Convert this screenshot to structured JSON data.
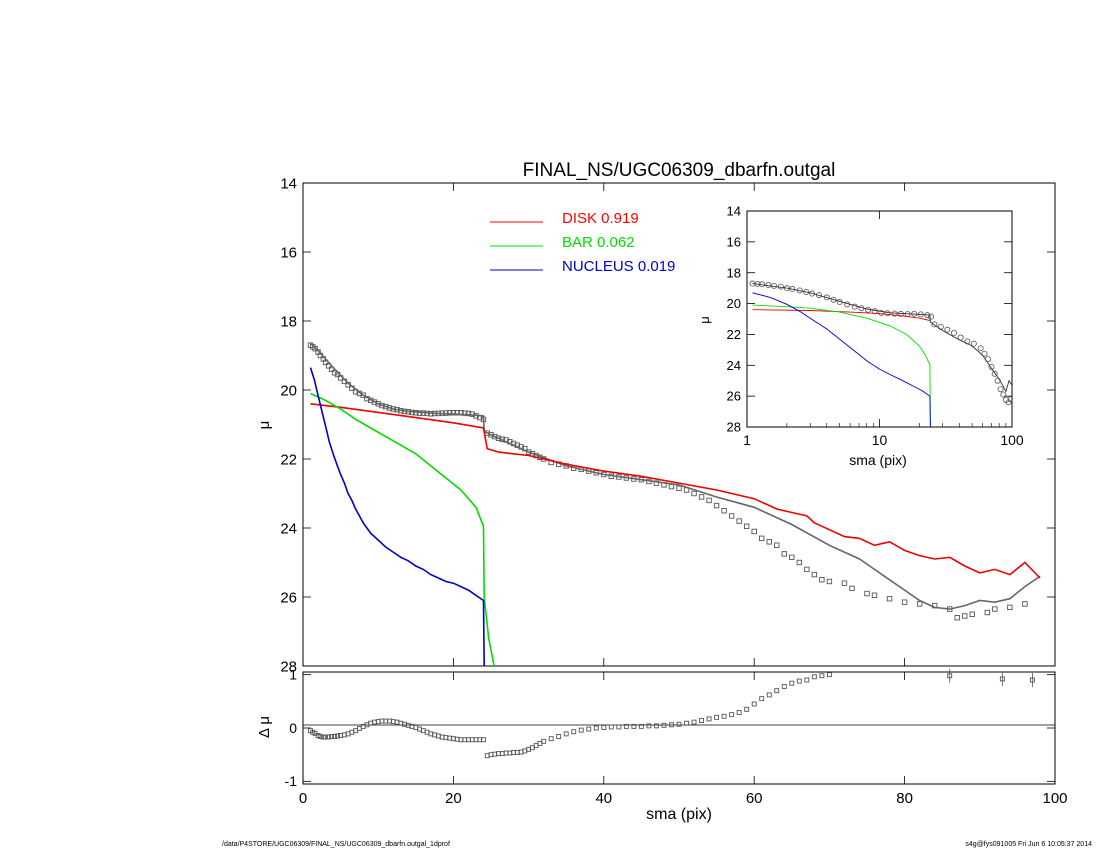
{
  "chart_data": [
    {
      "type": "scatter",
      "title": "FINAL_NS/UGC06309_dbarfn.outgal",
      "xlabel": "",
      "ylabel": "μ",
      "xlim": [
        0,
        100
      ],
      "ylim": [
        28,
        14
      ],
      "y_ticks": [
        14,
        16,
        18,
        20,
        22,
        24,
        26,
        28
      ],
      "x_ticks": [
        0,
        20,
        40,
        60,
        80,
        100
      ],
      "legend": {
        "placement": "top-center",
        "entries": [
          {
            "name": "DISK",
            "value": "0.919",
            "color": "#ff0000"
          },
          {
            "name": "BAR",
            "value": "0.062",
            "color": "#00dd00"
          },
          {
            "name": "NUCLEUS",
            "value": "0.019",
            "color": "#0000cc"
          }
        ]
      },
      "series": [
        {
          "name": "data",
          "style": "open-squares",
          "x": [
            1,
            1.3,
            1.6,
            2,
            2.3,
            2.7,
            3,
            3.4,
            3.8,
            4.2,
            4.6,
            5,
            5.5,
            6,
            6.5,
            7,
            7.5,
            8,
            8.5,
            9,
            9.5,
            10,
            10.5,
            11,
            11.5,
            12,
            12.5,
            13,
            13.5,
            14,
            14.5,
            15,
            15.5,
            16,
            16.5,
            17,
            17.5,
            18,
            18.5,
            19,
            19.5,
            20,
            20.5,
            21,
            21.5,
            22,
            22.5,
            23,
            23.5,
            24,
            24.5,
            25,
            25.5,
            26,
            26.5,
            27,
            27.5,
            28,
            28.5,
            29,
            29.5,
            30,
            30.5,
            31,
            31.5,
            32,
            33,
            34,
            35,
            36,
            37,
            38,
            39,
            40,
            41,
            42,
            43,
            44,
            45,
            46,
            47,
            48,
            49,
            50,
            51,
            52,
            53,
            54,
            55,
            56,
            57,
            58,
            59,
            60,
            61,
            62,
            63,
            64,
            65,
            66,
            67,
            68,
            69,
            70,
            72,
            73,
            75,
            76,
            78,
            80,
            82,
            84,
            86,
            87,
            88,
            89,
            91,
            92,
            94,
            96
          ],
          "y": [
            18.7,
            18.75,
            18.8,
            18.9,
            19,
            19.1,
            19.2,
            19.3,
            19.4,
            19.5,
            19.55,
            19.65,
            19.75,
            19.85,
            19.95,
            20.05,
            20.1,
            20.15,
            20.25,
            20.3,
            20.35,
            20.4,
            20.45,
            20.48,
            20.52,
            20.55,
            20.57,
            20.6,
            20.62,
            20.63,
            20.65,
            20.66,
            20.67,
            20.67,
            20.68,
            20.69,
            20.68,
            20.68,
            20.67,
            20.67,
            20.66,
            20.66,
            20.66,
            20.66,
            20.67,
            20.68,
            20.7,
            20.75,
            20.8,
            20.85,
            21.25,
            21.3,
            21.35,
            21.4,
            21.43,
            21.45,
            21.5,
            21.55,
            21.6,
            21.65,
            21.7,
            21.8,
            21.85,
            21.9,
            21.95,
            22,
            22.1,
            22.15,
            22.2,
            22.27,
            22.3,
            22.35,
            22.4,
            22.45,
            22.5,
            22.52,
            22.55,
            22.58,
            22.6,
            22.65,
            22.7,
            22.75,
            22.8,
            22.85,
            22.9,
            23,
            23.1,
            23.2,
            23.35,
            23.5,
            23.65,
            23.8,
            23.95,
            24.1,
            24.3,
            24.4,
            24.5,
            24.75,
            24.85,
            25,
            25.2,
            25.35,
            25.5,
            25.55,
            25.6,
            25.75,
            25.9,
            25.95,
            26.05,
            26.15,
            26.2,
            26.25,
            26.35,
            26.6,
            26.55,
            26.5,
            26.45,
            26.35,
            26.3,
            26.2
          ],
          "color": "#555555"
        },
        {
          "name": "model",
          "x": [
            1,
            2,
            4,
            6,
            8,
            10,
            12,
            14,
            16,
            18,
            20,
            22,
            24,
            24.1,
            25,
            30,
            35,
            40,
            45,
            50,
            55,
            60,
            65,
            70,
            72,
            74,
            76,
            78,
            80,
            82,
            84,
            86,
            88,
            90,
            92,
            94,
            96,
            98
          ],
          "y": [
            18.65,
            18.85,
            19.35,
            19.8,
            20.15,
            20.4,
            20.55,
            20.62,
            20.65,
            20.68,
            20.7,
            20.72,
            20.75,
            21.2,
            21.3,
            21.8,
            22.2,
            22.45,
            22.6,
            22.75,
            23.1,
            23.4,
            23.9,
            24.5,
            24.7,
            24.9,
            25.2,
            25.5,
            25.8,
            26.1,
            26.3,
            26.35,
            26.25,
            26.1,
            26.15,
            26.05,
            25.7,
            25.4
          ],
          "color": "#666666"
        },
        {
          "name": "DISK",
          "x": [
            1,
            5,
            10,
            15,
            20,
            24,
            24.5,
            26,
            30,
            35,
            40,
            45,
            50,
            55,
            60,
            63,
            65,
            67,
            68,
            70,
            72,
            74,
            76,
            78,
            80,
            82,
            84,
            86,
            88,
            90,
            92,
            94,
            96,
            98
          ],
          "y": [
            20.4,
            20.5,
            20.65,
            20.8,
            20.95,
            21.1,
            21.7,
            21.8,
            21.9,
            22.15,
            22.35,
            22.5,
            22.7,
            22.9,
            23.15,
            23.45,
            23.55,
            23.65,
            23.85,
            24.05,
            24.25,
            24.3,
            24.5,
            24.4,
            24.65,
            24.8,
            24.9,
            24.85,
            25.1,
            25.3,
            25.2,
            25.35,
            25.0,
            25.45
          ],
          "color": "#ee0000"
        },
        {
          "name": "BAR",
          "x": [
            1,
            3,
            5,
            7,
            9,
            11,
            13,
            15,
            17,
            19,
            21,
            23,
            24,
            24.1,
            24.7,
            25.5
          ],
          "y": [
            20.1,
            20.3,
            20.55,
            20.85,
            21.1,
            21.35,
            21.6,
            21.85,
            22.2,
            22.55,
            22.9,
            23.4,
            23.95,
            26.0,
            27.2,
            28.1
          ],
          "color": "#00dd00"
        },
        {
          "name": "NUCLEUS",
          "x": [
            1,
            1.5,
            2,
            2.5,
            3,
            3.5,
            4,
            4.5,
            5,
            5.5,
            6,
            6.5,
            7,
            7.5,
            8,
            8.5,
            9,
            10,
            11,
            12,
            13,
            14,
            15,
            16,
            17,
            18,
            19,
            20,
            21,
            22,
            23,
            24,
            24.1
          ],
          "y": [
            19.35,
            19.7,
            20.15,
            20.6,
            21.05,
            21.5,
            21.85,
            22.15,
            22.45,
            22.7,
            23.0,
            23.2,
            23.45,
            23.65,
            23.85,
            24.0,
            24.15,
            24.35,
            24.55,
            24.7,
            24.85,
            24.95,
            25.1,
            25.2,
            25.35,
            25.45,
            25.55,
            25.6,
            25.7,
            25.8,
            25.95,
            26.1,
            28.0
          ],
          "color": "#0000cc"
        }
      ]
    },
    {
      "type": "scatter",
      "title": "",
      "xlabel": "sma (pix)",
      "ylabel": "Δ μ",
      "xlim": [
        0,
        100
      ],
      "ylim": [
        -1.05,
        1.05
      ],
      "y_ticks": [
        -1,
        0,
        1
      ],
      "x_ticks": [
        0,
        20,
        40,
        60,
        80,
        100
      ],
      "series": [
        {
          "name": "residual",
          "style": "open-squares",
          "x": [
            1,
            1.3,
            1.6,
            2,
            2.3,
            2.7,
            3,
            3.4,
            3.8,
            4.2,
            4.6,
            5,
            5.5,
            6,
            6.5,
            7,
            7.5,
            8,
            8.5,
            9,
            9.5,
            10,
            10.5,
            11,
            11.5,
            12,
            12.5,
            13,
            13.5,
            14,
            14.5,
            15,
            15.5,
            16,
            16.5,
            17,
            17.5,
            18,
            18.5,
            19,
            19.5,
            20,
            20.5,
            21,
            21.5,
            22,
            22.5,
            23,
            23.5,
            24,
            24.5,
            25,
            25.5,
            26,
            26.5,
            27,
            27.5,
            28,
            28.5,
            29,
            29.5,
            30,
            30.5,
            31,
            31.5,
            32,
            33,
            34,
            35,
            36,
            37,
            38,
            39,
            40,
            41,
            42,
            43,
            44,
            45,
            46,
            47,
            48,
            49,
            50,
            51,
            52,
            53,
            54,
            55,
            56,
            57,
            58,
            59,
            60,
            61,
            62,
            63,
            64,
            65,
            66,
            67,
            68,
            69,
            70,
            86,
            93,
            97
          ],
          "y": [
            -0.05,
            -0.08,
            -0.1,
            -0.14,
            -0.16,
            -0.17,
            -0.17,
            -0.17,
            -0.16,
            -0.16,
            -0.15,
            -0.14,
            -0.13,
            -0.11,
            -0.08,
            -0.05,
            -0.01,
            0.03,
            0.06,
            0.09,
            0.11,
            0.12,
            0.13,
            0.13,
            0.13,
            0.12,
            0.11,
            0.09,
            0.07,
            0.05,
            0.03,
            0.01,
            -0.02,
            -0.05,
            -0.08,
            -0.11,
            -0.13,
            -0.15,
            -0.17,
            -0.18,
            -0.19,
            -0.2,
            -0.21,
            -0.22,
            -0.22,
            -0.22,
            -0.22,
            -0.22,
            -0.22,
            -0.22,
            -0.52,
            -0.5,
            -0.49,
            -0.48,
            -0.48,
            -0.47,
            -0.47,
            -0.46,
            -0.46,
            -0.45,
            -0.43,
            -0.4,
            -0.37,
            -0.33,
            -0.29,
            -0.25,
            -0.2,
            -0.16,
            -0.11,
            -0.07,
            -0.04,
            -0.02,
            0.0,
            0.01,
            0.02,
            0.02,
            0.03,
            0.03,
            0.03,
            0.04,
            0.04,
            0.05,
            0.06,
            0.07,
            0.09,
            0.11,
            0.14,
            0.17,
            0.2,
            0.22,
            0.25,
            0.29,
            0.35,
            0.45,
            0.55,
            0.62,
            0.7,
            0.78,
            0.84,
            0.88,
            0.9,
            0.96,
            0.98,
            1.0,
            0.98,
            0.92,
            0.9
          ],
          "color": "#555555"
        }
      ]
    },
    {
      "type": "scatter",
      "title": "",
      "xlabel": "sma (pix)",
      "ylabel": "μ",
      "x_scale": "log",
      "xlim": [
        1,
        100
      ],
      "ylim": [
        28,
        14
      ],
      "y_ticks": [
        14,
        16,
        18,
        20,
        22,
        24,
        26,
        28
      ],
      "x_ticks": [
        1,
        10,
        100
      ],
      "series": [
        {
          "name": "data",
          "style": "open-circles",
          "x": [
            1.1,
            1.2,
            1.3,
            1.45,
            1.6,
            1.8,
            2,
            2.2,
            2.5,
            2.8,
            3.1,
            3.5,
            4,
            4.5,
            5,
            5.7,
            6.5,
            7.3,
            8.2,
            9.2,
            10.3,
            11.5,
            13,
            14.5,
            16.3,
            18.3,
            20.5,
            23,
            24.5,
            26,
            29,
            32.5,
            36.5,
            41,
            46,
            51.5,
            58,
            62,
            66,
            70,
            74,
            78,
            82,
            86,
            90,
            94,
            98
          ],
          "y": [
            18.7,
            18.72,
            18.75,
            18.8,
            18.85,
            18.9,
            19,
            19.05,
            19.15,
            19.25,
            19.35,
            19.45,
            19.6,
            19.75,
            19.9,
            20.05,
            20.2,
            20.3,
            20.4,
            20.5,
            20.6,
            20.63,
            20.65,
            20.67,
            20.68,
            20.66,
            20.7,
            20.75,
            20.85,
            21.35,
            21.5,
            21.7,
            21.9,
            22.2,
            22.45,
            22.6,
            22.9,
            23.25,
            23.6,
            24.1,
            24.55,
            25,
            25.55,
            25.9,
            26.25,
            26.4,
            26.2
          ],
          "color": "#555555"
        },
        {
          "name": "model",
          "x": [
            1.1,
            2,
            3,
            5,
            8,
            12,
            18,
            24,
            24.2,
            30,
            40,
            50,
            60,
            70,
            80,
            90,
            95,
            100
          ],
          "y": [
            18.7,
            19.0,
            19.3,
            19.85,
            20.35,
            20.6,
            20.68,
            20.75,
            21.2,
            21.75,
            22.35,
            22.75,
            23.35,
            24.2,
            24.9,
            25.7,
            25.0,
            25.3
          ],
          "color": "#333333"
        },
        {
          "name": "DISK",
          "x": [
            1.1,
            3,
            6,
            10,
            15,
            20,
            24
          ],
          "y": [
            20.4,
            20.45,
            20.55,
            20.65,
            20.8,
            20.95,
            21.1
          ],
          "color": "#ee0000"
        },
        {
          "name": "BAR",
          "x": [
            1.1,
            2,
            3,
            5,
            8,
            12,
            16,
            20,
            22,
            23.5,
            24,
            24.2
          ],
          "y": [
            20.1,
            20.2,
            20.3,
            20.55,
            20.95,
            21.45,
            22.0,
            22.75,
            23.3,
            23.8,
            23.95,
            28.0
          ],
          "color": "#00dd00"
        },
        {
          "name": "NUCLEUS",
          "x": [
            1.1,
            1.5,
            2,
            2.5,
            3,
            4,
            5,
            6,
            7,
            8,
            10,
            12,
            15,
            18,
            21,
            24,
            24.2
          ],
          "y": [
            19.3,
            19.6,
            20.05,
            20.5,
            20.95,
            21.65,
            22.3,
            22.85,
            23.3,
            23.7,
            24.25,
            24.6,
            25.0,
            25.35,
            25.65,
            26.0,
            28.0
          ],
          "color": "#0000cc"
        }
      ]
    }
  ],
  "footer": {
    "left": "/data/P4STORE/UGC06309/FINAL_NS/UGC06309_dbarfn.outgal_1dprof",
    "right": "s4g@fys091005  Fri Jun  6 10:05:37 2014"
  }
}
